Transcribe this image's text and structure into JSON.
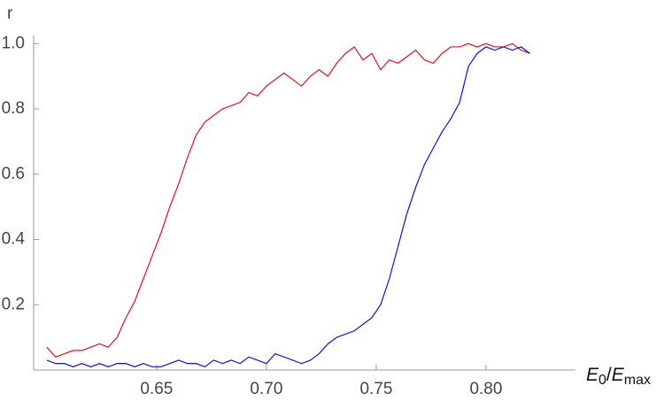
{
  "chart_data": {
    "type": "line",
    "ylabel": "r",
    "xlabel_parts": [
      "E",
      "0",
      "/",
      "E",
      "max"
    ],
    "x": [
      0.6,
      0.604,
      0.608,
      0.612,
      0.616,
      0.62,
      0.624,
      0.628,
      0.632,
      0.636,
      0.64,
      0.644,
      0.648,
      0.652,
      0.656,
      0.66,
      0.664,
      0.668,
      0.672,
      0.676,
      0.68,
      0.684,
      0.688,
      0.692,
      0.696,
      0.7,
      0.704,
      0.708,
      0.712,
      0.716,
      0.72,
      0.724,
      0.728,
      0.732,
      0.736,
      0.74,
      0.744,
      0.748,
      0.752,
      0.756,
      0.76,
      0.764,
      0.768,
      0.772,
      0.776,
      0.78,
      0.784,
      0.788,
      0.792,
      0.796,
      0.8,
      0.804,
      0.808,
      0.812,
      0.816,
      0.82
    ],
    "series": [
      {
        "color": "#e8101a",
        "values": [
          0.07,
          0.04,
          0.05,
          0.06,
          0.06,
          0.07,
          0.08,
          0.07,
          0.1,
          0.16,
          0.21,
          0.28,
          0.35,
          0.42,
          0.5,
          0.57,
          0.65,
          0.72,
          0.76,
          0.78,
          0.8,
          0.81,
          0.82,
          0.85,
          0.84,
          0.87,
          0.89,
          0.91,
          0.89,
          0.87,
          0.9,
          0.92,
          0.9,
          0.94,
          0.97,
          0.99,
          0.95,
          0.97,
          0.92,
          0.95,
          0.94,
          0.96,
          0.98,
          0.95,
          0.94,
          0.97,
          0.99,
          0.99,
          1.0,
          0.99,
          1.0,
          0.99,
          0.99,
          1.0,
          0.98,
          0.97
        ]
      },
      {
        "color": "#1010e0",
        "values": [
          0.03,
          0.02,
          0.02,
          0.01,
          0.02,
          0.01,
          0.02,
          0.01,
          0.02,
          0.02,
          0.01,
          0.02,
          0.01,
          0.01,
          0.02,
          0.03,
          0.02,
          0.02,
          0.01,
          0.03,
          0.02,
          0.03,
          0.02,
          0.04,
          0.03,
          0.02,
          0.05,
          0.04,
          0.03,
          0.02,
          0.03,
          0.05,
          0.08,
          0.1,
          0.11,
          0.12,
          0.14,
          0.16,
          0.2,
          0.28,
          0.38,
          0.48,
          0.56,
          0.63,
          0.68,
          0.73,
          0.77,
          0.82,
          0.93,
          0.97,
          0.99,
          0.98,
          0.99,
          0.98,
          0.99,
          0.97
        ]
      }
    ],
    "xlim": [
      0.594,
      0.8405
    ],
    "ylim": [
      0,
      1.02
    ],
    "xticks": [
      0.65,
      {
        "value": 0.7,
        "label": "0.70"
      },
      0.75,
      {
        "value": 0.8,
        "label": "0.80"
      }
    ],
    "yticks": [
      0.2,
      0.4,
      0.6,
      0.8,
      {
        "value": 1,
        "label": "1.0"
      }
    ]
  }
}
